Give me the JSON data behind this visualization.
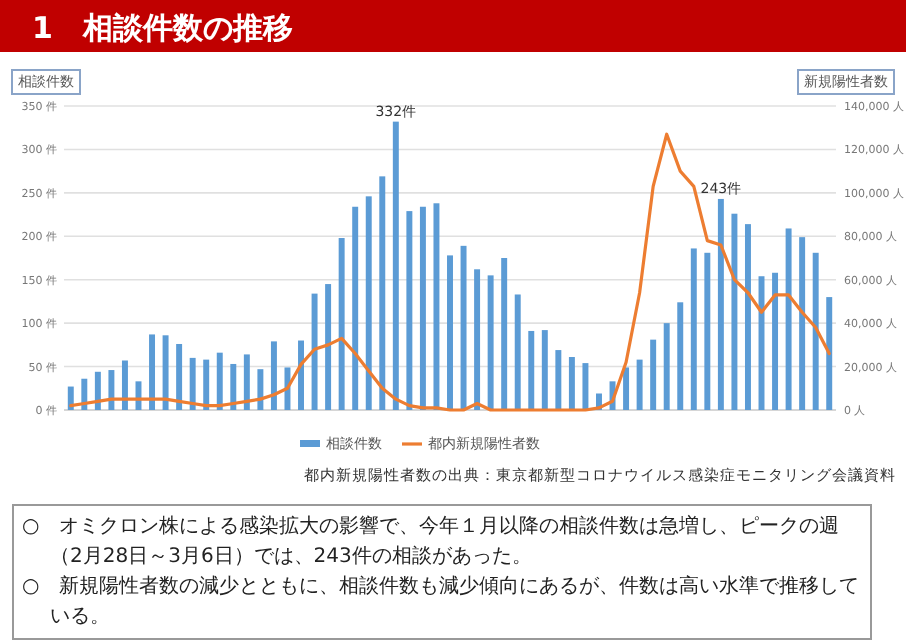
{
  "chart_data": {
    "type": "bar",
    "title": "1　相談件数の推移",
    "ylabel": "相談件数",
    "y2label": "新規陽性者数",
    "categories": [
      null,
      null,
      null,
      null,
      null,
      null,
      null,
      null,
      null,
      null,
      null,
      null,
      null,
      null,
      null,
      null,
      null,
      null,
      null,
      null,
      null,
      null,
      null,
      null,
      null,
      null,
      null,
      null,
      null,
      null,
      null,
      null,
      null,
      null,
      null,
      null,
      null,
      null,
      null,
      null,
      null,
      null,
      null,
      null,
      null,
      null,
      null,
      null,
      null,
      null,
      null,
      null,
      null,
      null,
      null,
      null,
      null
    ],
    "series": [
      {
        "name": "相談件数",
        "color": "#5b9bd5",
        "values": [
          27,
          36,
          44,
          46,
          57,
          33,
          87,
          86,
          76,
          60,
          58,
          66,
          53,
          64,
          47,
          79,
          49,
          80,
          134,
          145,
          198,
          234,
          246,
          269,
          332,
          229,
          234,
          238,
          178,
          189,
          162,
          155,
          175,
          133,
          91,
          92,
          69,
          61,
          54,
          19,
          33,
          49,
          58,
          81,
          100,
          124,
          186,
          181,
          243,
          226,
          214,
          154,
          158,
          209,
          199,
          181,
          130
        ]
      },
      {
        "name": "都内新規陽性者数",
        "type": "line",
        "axis": "y2",
        "color": "#ed7d31",
        "values": [
          2000,
          3000,
          4000,
          5000,
          5000,
          5000,
          5000,
          5000,
          4000,
          3000,
          2000,
          2000,
          3000,
          4000,
          5000,
          7000,
          10000,
          21000,
          28000,
          30000,
          33000,
          26000,
          18000,
          10000,
          5000,
          2000,
          1000,
          1000,
          0,
          0,
          3000,
          0,
          0,
          0,
          0,
          0,
          0,
          0,
          0,
          1000,
          4000,
          22000,
          54000,
          103000,
          127000,
          110000,
          103000,
          78000,
          76000,
          60000,
          54000,
          45000,
          53000,
          53000,
          45000,
          38000,
          26000
        ]
      }
    ],
    "ylim": [
      0,
      350
    ],
    "yticks": [
      {
        "value": 0,
        "label": "0 件"
      },
      {
        "value": 50,
        "label": "50 件"
      },
      {
        "value": 100,
        "label": "100 件"
      },
      {
        "value": 150,
        "label": "150 件"
      },
      {
        "value": 200,
        "label": "200 件"
      },
      {
        "value": 250,
        "label": "250 件"
      },
      {
        "value": 300,
        "label": "300 件"
      },
      {
        "value": 350,
        "label": "350 件"
      }
    ],
    "y2lim": [
      0,
      140000
    ],
    "y2ticks": [
      {
        "value": 0,
        "label": "0 人"
      },
      {
        "value": 20000,
        "label": "20,000 人"
      },
      {
        "value": 40000,
        "label": "40,000 人"
      },
      {
        "value": 60000,
        "label": "60,000 人"
      },
      {
        "value": 80000,
        "label": "80,000 人"
      },
      {
        "value": 100000,
        "label": "100,000 人"
      },
      {
        "value": 120000,
        "label": "120,000 人"
      },
      {
        "value": 140000,
        "label": "140,000 人"
      }
    ],
    "grid": "y",
    "legend": "bottom",
    "annotations": [
      {
        "text": "332件",
        "y": 332
      },
      {
        "text": "243件",
        "y": 243
      },
      "都内新規陽性者数の出典：東京都新型コロナウイルス感染症モニタリング会議資料",
      "○　オミクロン株による感染拡大の影響で、今年１月以降の相談件数は急増し、ピークの週（2月28日～3月6日）では、243件の相談があった。",
      "○　新規陽性者数の減少とともに、相談件数も減少傾向にあるが、件数は高い水準で推移している。"
    ]
  }
}
